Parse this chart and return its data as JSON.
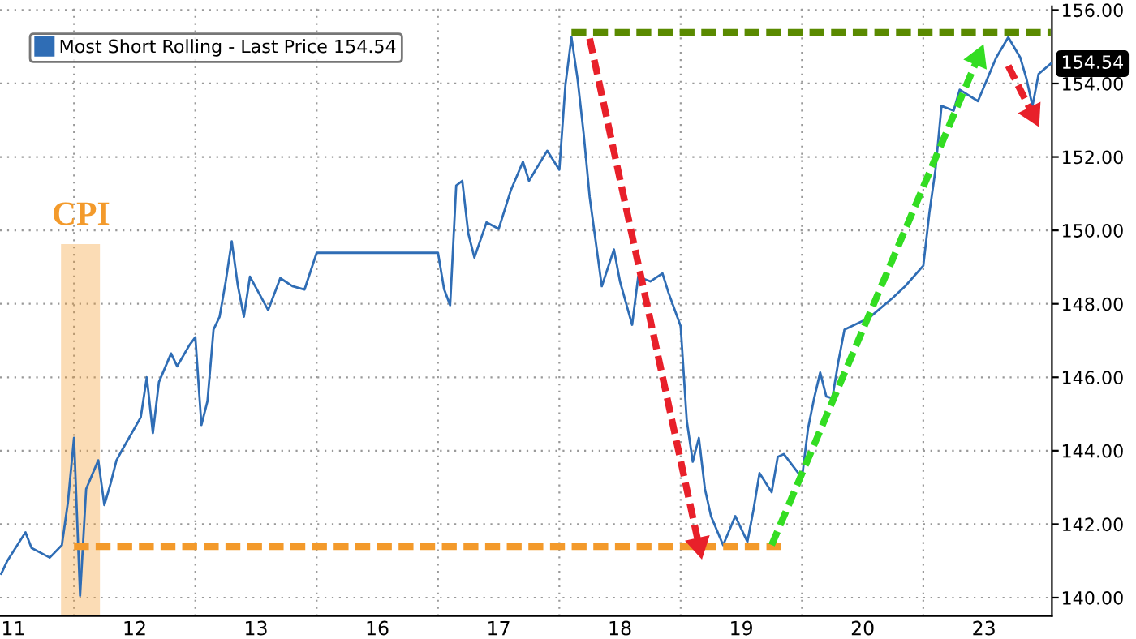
{
  "chart_data": {
    "type": "line",
    "categories": [
      null,
      null,
      "11",
      null,
      null,
      null,
      null,
      null,
      null,
      null,
      null,
      null,
      null,
      null,
      null,
      null,
      null,
      null,
      null,
      null,
      null,
      null,
      "12",
      null,
      null,
      null,
      null,
      null,
      null,
      null,
      null,
      null,
      null,
      null,
      null,
      null,
      null,
      null,
      null,
      null,
      null,
      null,
      "13",
      null,
      null,
      null,
      null,
      null,
      null,
      null,
      null,
      null,
      null,
      null,
      null,
      null,
      null,
      null,
      null,
      null,
      null,
      null,
      "16",
      null,
      null,
      null,
      null,
      null,
      null,
      null,
      null,
      null,
      null,
      null,
      null,
      null,
      null,
      null,
      null,
      null,
      null,
      null,
      "17",
      null,
      null,
      null,
      null,
      null,
      null,
      null,
      null,
      null,
      null,
      null,
      null,
      null,
      null,
      null,
      null,
      null,
      null,
      null,
      "18",
      null,
      null,
      null,
      null,
      null,
      null,
      null,
      null,
      null,
      null,
      null,
      null,
      null,
      null,
      null,
      null,
      null,
      null,
      null,
      "19",
      null,
      null,
      null,
      null,
      null,
      null,
      null,
      null,
      null,
      null,
      null,
      null,
      null,
      null,
      null,
      null,
      null,
      null,
      null,
      "20",
      null,
      null,
      null,
      null,
      null,
      null,
      null,
      null,
      null,
      null,
      null,
      null,
      null,
      null,
      null,
      null,
      null,
      null,
      null,
      "23",
      null,
      null,
      null,
      null,
      null,
      null,
      null,
      null,
      null,
      null,
      null
    ],
    "ylim": [
      139.5,
      156.1
    ],
    "yticks": [
      {
        "value": 140,
        "label": "140.00"
      },
      {
        "value": 142,
        "label": "142.00"
      },
      {
        "value": 144,
        "label": "144.00"
      },
      {
        "value": 146,
        "label": "146.00"
      },
      {
        "value": 148,
        "label": "148.00"
      },
      {
        "value": 150,
        "label": "150.00"
      },
      {
        "value": 152,
        "label": "152.00"
      },
      {
        "value": 154,
        "label": "154.00"
      },
      {
        "value": 156,
        "label": "156.00"
      }
    ],
    "grid": true,
    "legend": "top left",
    "series": [
      {
        "name": "Most Short Rolling - Last Price 154.54",
        "color": "#2f6db5",
        "line_style": "solid",
        "values": [
          140.65,
          141.0,
          null,
          null,
          141.78,
          141.35,
          null,
          null,
          141.09,
          null,
          141.43,
          142.6,
          144.35,
          140.05,
          142.96,
          null,
          143.74,
          142.52,
          143.09,
          143.74,
          144.04,
          null,
          null,
          144.91,
          146.0,
          144.48,
          145.87,
          null,
          146.65,
          146.3,
          null,
          146.87,
          147.09,
          144.7,
          145.35,
          147.3,
          147.65,
          148.6,
          149.7,
          148.5,
          147.65,
          148.74,
          null,
          null,
          147.83,
          null,
          148.7,
          null,
          148.48,
          null,
          148.39,
          null,
          149.39,
          null,
          null,
          null,
          null,
          null,
          null,
          null,
          null,
          null,
          null,
          null,
          null,
          null,
          null,
          null,
          null,
          null,
          null,
          null,
          149.39,
          148.4,
          147.96,
          151.22,
          151.35,
          149.91,
          149.26,
          null,
          150.22,
          null,
          150.04,
          null,
          151.09,
          null,
          151.87,
          151.35,
          null,
          null,
          152.17,
          null,
          151.65,
          153.96,
          155.26,
          154.13,
          152.65,
          150.91,
          null,
          148.48,
          null,
          149.48,
          148.61,
          null,
          147.43,
          148.74,
          null,
          148.61,
          null,
          148.83,
          148.3,
          null,
          147.39,
          144.83,
          143.7,
          144.35,
          142.96,
          142.22,
          null,
          141.43,
          null,
          142.22,
          null,
          141.52,
          142.39,
          143.39,
          null,
          142.87,
          143.83,
          143.91,
          null,
          null,
          143.26,
          144.61,
          145.43,
          146.13,
          145.48,
          145.43,
          146.43,
          147.3,
          null,
          null,
          null,
          147.61,
          null,
          null,
          null,
          148.17,
          null,
          148.48,
          null,
          null,
          149.04,
          150.48,
          151.65,
          153.39,
          null,
          153.26,
          153.83,
          null,
          null,
          153.52,
          null,
          null,
          154.7,
          null,
          155.26,
          null,
          154.7,
          154.13,
          153.39,
          154.26,
          null,
          154.54
        ]
      },
      {
        "color": "#5a8a00",
        "line_style": "dashed",
        "values": [
          null,
          null,
          null,
          null,
          null,
          null,
          null,
          null,
          null,
          null,
          null,
          null,
          null,
          null,
          null,
          null,
          null,
          null,
          null,
          null,
          null,
          null,
          null,
          null,
          null,
          null,
          null,
          null,
          null,
          null,
          null,
          null,
          null,
          null,
          null,
          null,
          null,
          null,
          null,
          null,
          null,
          null,
          null,
          null,
          null,
          null,
          null,
          null,
          null,
          null,
          null,
          null,
          null,
          null,
          null,
          null,
          null,
          null,
          null,
          null,
          null,
          null,
          null,
          null,
          null,
          null,
          null,
          null,
          null,
          null,
          null,
          null,
          null,
          null,
          null,
          null,
          null,
          null,
          null,
          null,
          null,
          null,
          null,
          null,
          null,
          null,
          null,
          null,
          null,
          null,
          null,
          null,
          null,
          null,
          155.39,
          null,
          null,
          null,
          null,
          null,
          null,
          null,
          null,
          null,
          null,
          null,
          null,
          null,
          null,
          null,
          null,
          null,
          null,
          null,
          null,
          null,
          null,
          null,
          null,
          null,
          null,
          null,
          null,
          null,
          null,
          null,
          null,
          null,
          null,
          null,
          null,
          null,
          null,
          null,
          null,
          null,
          null,
          null,
          null,
          null,
          null,
          null,
          null,
          null,
          null,
          null,
          null,
          null,
          null,
          null,
          null,
          null,
          null,
          null,
          null,
          null,
          null,
          null,
          null,
          null,
          null,
          null,
          null,
          null,
          null,
          null,
          null,
          null,
          null,
          null,
          null,
          null,
          null,
          155.39
        ]
      },
      {
        "color": "#f39a2b",
        "line_style": "dashed",
        "values": [
          null,
          null,
          null,
          null,
          null,
          null,
          null,
          null,
          null,
          null,
          null,
          null,
          141.39,
          null,
          null,
          null,
          null,
          null,
          null,
          null,
          null,
          null,
          null,
          null,
          null,
          null,
          null,
          null,
          null,
          null,
          null,
          null,
          null,
          null,
          null,
          null,
          null,
          null,
          null,
          null,
          null,
          null,
          null,
          null,
          null,
          null,
          null,
          null,
          null,
          null,
          null,
          null,
          null,
          null,
          null,
          null,
          null,
          null,
          null,
          null,
          null,
          null,
          null,
          null,
          null,
          null,
          null,
          null,
          null,
          null,
          null,
          null,
          null,
          null,
          null,
          null,
          null,
          null,
          null,
          null,
          null,
          null,
          null,
          null,
          null,
          null,
          null,
          null,
          null,
          null,
          null,
          null,
          null,
          null,
          null,
          null,
          null,
          null,
          null,
          null,
          null,
          null,
          null,
          null,
          null,
          null,
          null,
          null,
          null,
          null,
          null,
          null,
          null,
          null,
          null,
          null,
          null,
          null,
          null,
          null,
          null,
          null,
          null,
          null,
          null,
          null,
          null,
          null,
          null,
          141.39,
          null,
          null,
          null,
          null,
          null,
          null,
          null,
          null,
          null,
          null,
          null,
          null,
          null,
          null,
          null,
          null,
          null,
          null,
          null,
          null,
          null,
          null,
          null,
          null,
          null,
          null,
          null,
          null,
          null,
          null,
          null,
          null,
          null,
          null,
          null,
          null,
          null,
          null,
          null,
          null,
          null,
          null,
          null,
          null
        ]
      },
      {
        "color": "#e8202a",
        "line_style": "dashed",
        "marker": "triangle",
        "values": [
          null,
          null,
          null,
          null,
          null,
          null,
          null,
          null,
          null,
          null,
          null,
          null,
          null,
          null,
          null,
          null,
          null,
          null,
          null,
          null,
          null,
          null,
          null,
          null,
          null,
          null,
          null,
          null,
          null,
          null,
          null,
          null,
          null,
          null,
          null,
          null,
          null,
          null,
          null,
          null,
          null,
          null,
          null,
          null,
          null,
          null,
          null,
          null,
          null,
          null,
          null,
          null,
          null,
          null,
          null,
          null,
          null,
          null,
          null,
          null,
          null,
          null,
          null,
          null,
          null,
          null,
          null,
          null,
          null,
          null,
          null,
          null,
          null,
          null,
          null,
          null,
          null,
          null,
          null,
          null,
          null,
          null,
          null,
          null,
          null,
          null,
          null,
          null,
          null,
          null,
          null,
          null,
          null,
          null,
          null,
          null,
          null,
          155.22,
          null,
          null,
          null,
          null,
          null,
          null,
          null,
          null,
          null,
          null,
          null,
          null,
          null,
          null,
          null,
          null,
          null,
          141.43,
          null,
          null,
          null,
          null,
          null,
          null,
          null,
          null,
          null,
          null,
          null,
          null,
          null,
          null,
          null,
          null,
          null,
          null,
          null,
          null,
          null,
          null,
          null,
          null,
          null,
          null,
          null,
          null,
          null,
          null,
          null,
          null,
          null,
          null,
          null,
          null,
          null,
          null,
          null,
          null,
          null,
          null,
          null,
          null,
          null,
          null,
          null,
          null,
          null,
          null,
          null,
          null,
          null,
          null,
          null,
          null,
          null,
          null
        ]
      },
      {
        "color": "#33dd22",
        "line_style": "dashed",
        "marker": "triangle",
        "values": [
          null,
          null,
          null,
          null,
          null,
          null,
          null,
          null,
          null,
          null,
          null,
          null,
          null,
          null,
          null,
          null,
          null,
          null,
          null,
          null,
          null,
          null,
          null,
          null,
          null,
          null,
          null,
          null,
          null,
          null,
          null,
          null,
          null,
          null,
          null,
          null,
          null,
          null,
          null,
          null,
          null,
          null,
          null,
          null,
          null,
          null,
          null,
          null,
          null,
          null,
          null,
          null,
          null,
          null,
          null,
          null,
          null,
          null,
          null,
          null,
          null,
          null,
          null,
          null,
          null,
          null,
          null,
          null,
          null,
          null,
          null,
          null,
          null,
          null,
          null,
          null,
          null,
          null,
          null,
          null,
          null,
          null,
          null,
          null,
          null,
          null,
          null,
          null,
          null,
          null,
          null,
          null,
          null,
          null,
          null,
          null,
          null,
          null,
          null,
          null,
          null,
          null,
          null,
          null,
          null,
          null,
          null,
          null,
          null,
          null,
          null,
          null,
          null,
          null,
          null,
          null,
          null,
          null,
          null,
          null,
          null,
          null,
          null,
          null,
          null,
          null,
          null,
          141.43,
          null,
          null,
          null,
          null,
          null,
          null,
          null,
          null,
          null,
          null,
          null,
          null,
          null,
          null,
          null,
          null,
          null,
          null,
          null,
          null,
          null,
          null,
          null,
          null,
          null,
          null,
          null,
          null,
          null,
          null,
          null,
          null,
          null,
          154.7,
          null,
          null,
          null,
          null,
          null,
          null,
          null,
          null,
          null,
          null,
          null,
          null
        ]
      },
      {
        "color": "#e8202a",
        "line_style": "dashed",
        "marker": "triangle",
        "values": [
          null,
          null,
          null,
          null,
          null,
          null,
          null,
          null,
          null,
          null,
          null,
          null,
          null,
          null,
          null,
          null,
          null,
          null,
          null,
          null,
          null,
          null,
          null,
          null,
          null,
          null,
          null,
          null,
          null,
          null,
          null,
          null,
          null,
          null,
          null,
          null,
          null,
          null,
          null,
          null,
          null,
          null,
          null,
          null,
          null,
          null,
          null,
          null,
          null,
          null,
          null,
          null,
          null,
          null,
          null,
          null,
          null,
          null,
          null,
          null,
          null,
          null,
          null,
          null,
          null,
          null,
          null,
          null,
          null,
          null,
          null,
          null,
          null,
          null,
          null,
          null,
          null,
          null,
          null,
          null,
          null,
          null,
          null,
          null,
          null,
          null,
          null,
          null,
          null,
          null,
          null,
          null,
          null,
          null,
          null,
          null,
          null,
          null,
          null,
          null,
          null,
          null,
          null,
          null,
          null,
          null,
          null,
          null,
          null,
          null,
          null,
          null,
          null,
          null,
          null,
          null,
          null,
          null,
          null,
          null,
          null,
          null,
          null,
          null,
          null,
          null,
          null,
          null,
          null,
          null,
          null,
          null,
          null,
          null,
          null,
          null,
          null,
          null,
          null,
          null,
          null,
          null,
          null,
          null,
          null,
          null,
          null,
          null,
          null,
          null,
          null,
          null,
          null,
          null,
          null,
          null,
          null,
          null,
          null,
          null,
          null,
          null,
          null,
          null,
          null,
          null,
          154.48,
          null,
          null,
          null,
          153.17,
          null,
          null,
          null
        ]
      }
    ],
    "annotations": [
      "CPI",
      "154.54"
    ]
  }
}
